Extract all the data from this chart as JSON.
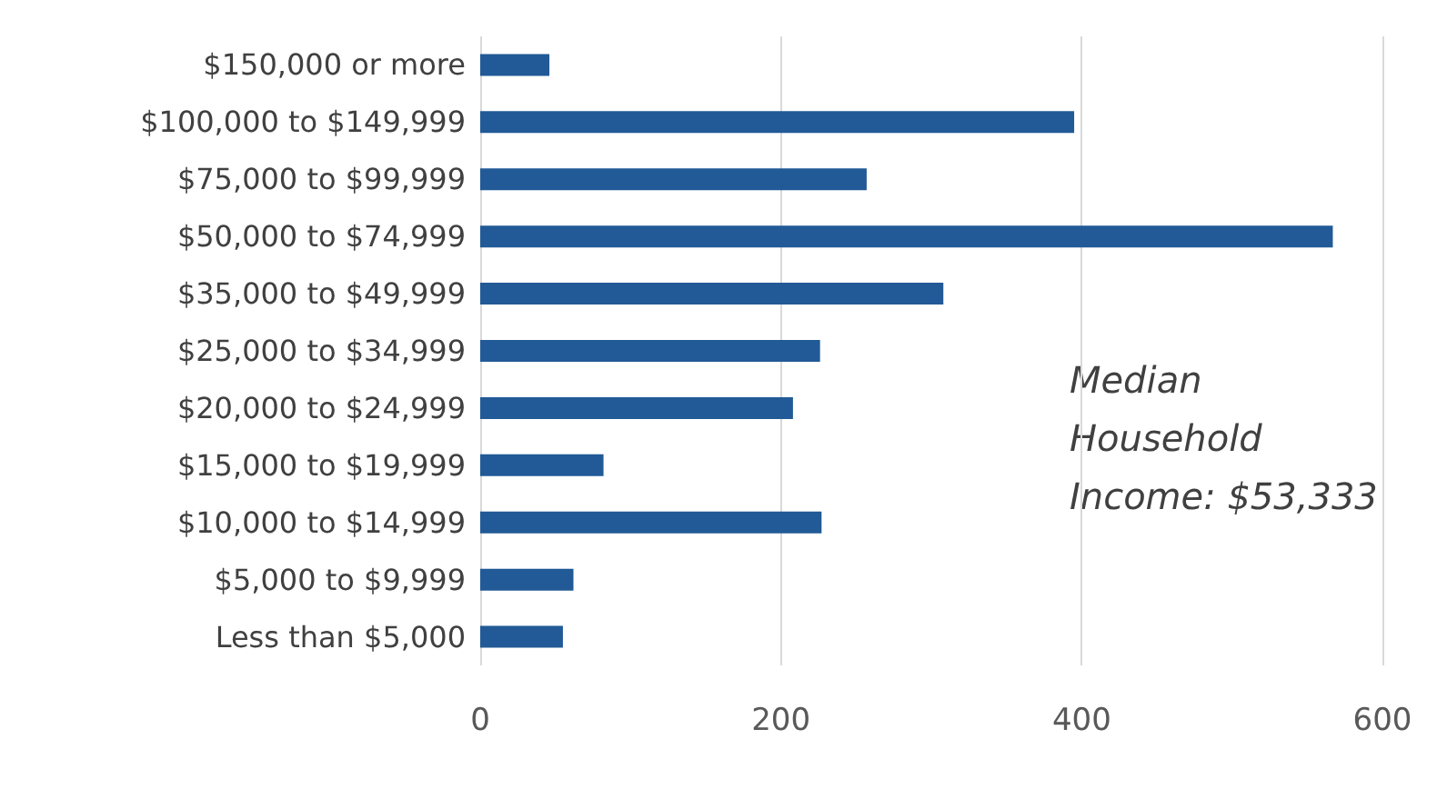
{
  "chart_data": {
    "type": "bar",
    "orientation": "horizontal",
    "categories": [
      "$150,000 or more",
      "$100,000 to $149,999",
      "$75,000 to $99,999",
      "$50,000 to $74,999",
      "$35,000 to $49,999",
      "$25,000 to $34,999",
      "$20,000 to $24,999",
      "$15,000 to $19,999",
      "$10,000 to $14,999",
      "$5,000 to $9,999",
      "Less than $5,000"
    ],
    "values": [
      46,
      395,
      257,
      567,
      308,
      226,
      208,
      82,
      227,
      62,
      55
    ],
    "color": "#215a96",
    "xlim": [
      0,
      600
    ],
    "xticks": [
      0,
      200,
      400,
      600
    ],
    "grid": "x",
    "annotations": [
      "Median Household Income: $53,333"
    ]
  }
}
